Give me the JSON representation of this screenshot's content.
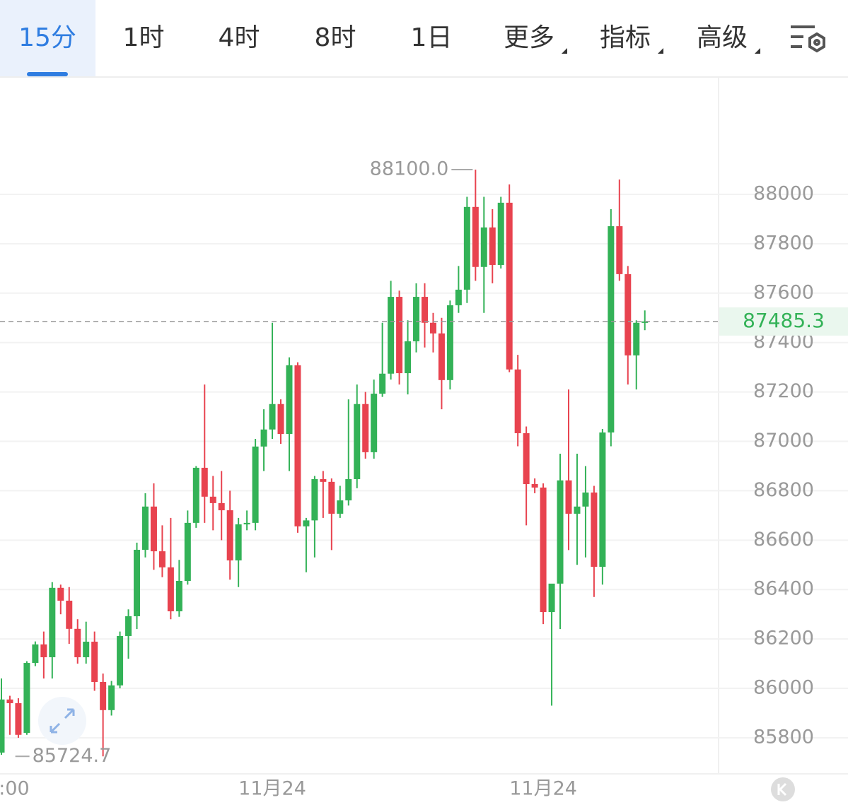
{
  "tabs": [
    "15分",
    "1时",
    "4时",
    "8时",
    "1日",
    "更多",
    "指标",
    "高级"
  ],
  "chart_data": {
    "type": "candlestick",
    "up_color": "#33b257",
    "down_color": "#e8434f",
    "ylim": [
      85654,
      88472
    ],
    "yticks": [
      85800,
      86000,
      86200,
      86400,
      86600,
      86800,
      87000,
      87200,
      87400,
      87600,
      87800,
      88000
    ],
    "grid": true,
    "high_label": {
      "value": 88100,
      "label": "88100.0"
    },
    "low_label": {
      "value": 85724.7,
      "label": "85724.7"
    },
    "last_price": 87485.3,
    "categories": [
      null,
      ":00",
      null,
      null,
      null,
      null,
      null,
      null,
      null,
      null,
      null,
      null,
      null,
      null,
      null,
      null,
      null,
      null,
      null,
      null,
      null,
      null,
      null,
      null,
      null,
      null,
      null,
      null,
      null,
      null,
      null,
      null,
      "11月24",
      null,
      null,
      null,
      null,
      null,
      null,
      null,
      null,
      null,
      null,
      null,
      null,
      null,
      null,
      null,
      null,
      null,
      null,
      null,
      null,
      null,
      null,
      null,
      null,
      null,
      null,
      null,
      null,
      null,
      null,
      null,
      "11月24",
      null,
      null,
      null,
      null,
      null,
      null,
      null,
      null,
      null,
      null,
      null,
      null
    ],
    "ohlc": [
      [
        85740,
        86040,
        85731,
        85955
      ],
      [
        85955,
        85970,
        85812,
        85940
      ],
      [
        85940,
        85960,
        85800,
        85812
      ],
      [
        85820,
        86110,
        85812,
        86103
      ],
      [
        86103,
        86190,
        86090,
        86178
      ],
      [
        86178,
        86230,
        86040,
        86126
      ],
      [
        86126,
        86430,
        86040,
        86407
      ],
      [
        86407,
        86420,
        86300,
        86355
      ],
      [
        86355,
        86410,
        86180,
        86241
      ],
      [
        86241,
        86280,
        86100,
        86126
      ],
      [
        86126,
        86270,
        86100,
        86189
      ],
      [
        86189,
        86230,
        85990,
        86026
      ],
      [
        86026,
        86060,
        85724.7,
        85912
      ],
      [
        85912,
        86030,
        85890,
        86012
      ],
      [
        86012,
        86230,
        86000,
        86212
      ],
      [
        86212,
        86320,
        86120,
        86292
      ],
      [
        86292,
        86590,
        86240,
        86561
      ],
      [
        86561,
        86790,
        86530,
        86736
      ],
      [
        86736,
        86830,
        86480,
        86555
      ],
      [
        86555,
        86660,
        86450,
        86490
      ],
      [
        86490,
        86690,
        86280,
        86312
      ],
      [
        86312,
        86520,
        86290,
        86435
      ],
      [
        86435,
        86720,
        86420,
        86670
      ],
      [
        86670,
        86900,
        86650,
        86893
      ],
      [
        86893,
        87230,
        86670,
        86776
      ],
      [
        86776,
        86860,
        86640,
        86750
      ],
      [
        86750,
        86880,
        86600,
        86721
      ],
      [
        86721,
        86800,
        86440,
        86518
      ],
      [
        86518,
        86690,
        86410,
        86664
      ],
      [
        86664,
        86720,
        86640,
        86670
      ],
      [
        86670,
        87010,
        86640,
        86979
      ],
      [
        86979,
        87130,
        86880,
        87048
      ],
      [
        87048,
        87480,
        87010,
        87151
      ],
      [
        87151,
        87170,
        86990,
        87030
      ],
      [
        87030,
        87340,
        86880,
        87308
      ],
      [
        87308,
        87320,
        86630,
        86656
      ],
      [
        86656,
        86690,
        86470,
        86680
      ],
      [
        86680,
        86860,
        86530,
        86847
      ],
      [
        86847,
        86880,
        86690,
        86836
      ],
      [
        86836,
        86850,
        86560,
        86707
      ],
      [
        86707,
        86820,
        86690,
        86761
      ],
      [
        86761,
        87170,
        86740,
        86847
      ],
      [
        86847,
        87230,
        86810,
        87151
      ],
      [
        87151,
        87200,
        86930,
        86956
      ],
      [
        86956,
        87250,
        86930,
        87193
      ],
      [
        87193,
        87480,
        87180,
        87274
      ],
      [
        87274,
        87650,
        87250,
        87585
      ],
      [
        87585,
        87610,
        87230,
        87276
      ],
      [
        87276,
        87490,
        87190,
        87405
      ],
      [
        87405,
        87640,
        87360,
        87585
      ],
      [
        87585,
        87640,
        87380,
        87480
      ],
      [
        87480,
        87520,
        87360,
        87437
      ],
      [
        87437,
        87500,
        87130,
        87248
      ],
      [
        87248,
        87570,
        87210,
        87551
      ],
      [
        87551,
        87710,
        87520,
        87614
      ],
      [
        87614,
        87990,
        87560,
        87949
      ],
      [
        87949,
        88100,
        87650,
        87706
      ],
      [
        87706,
        87990,
        87520,
        87866
      ],
      [
        87866,
        87940,
        87640,
        87714
      ],
      [
        87714,
        87990,
        87700,
        87966
      ],
      [
        87966,
        88040,
        87280,
        87291
      ],
      [
        87291,
        87350,
        86980,
        87033
      ],
      [
        87033,
        87060,
        86660,
        86827
      ],
      [
        86827,
        86850,
        86790,
        86813
      ],
      [
        86813,
        86830,
        86260,
        86309
      ],
      [
        86309,
        86420,
        85930,
        86424
      ],
      [
        86424,
        86950,
        86240,
        86842
      ],
      [
        86842,
        87210,
        86560,
        86707
      ],
      [
        86707,
        86950,
        86500,
        86736
      ],
      [
        86736,
        86900,
        86530,
        86793
      ],
      [
        86793,
        86820,
        86370,
        86492
      ],
      [
        86492,
        87050,
        86420,
        87036
      ],
      [
        87036,
        87940,
        86980,
        87871
      ],
      [
        87871,
        88060,
        87650,
        87677
      ],
      [
        87677,
        87710,
        87230,
        87348
      ],
      [
        87348,
        87490,
        87210,
        87480
      ],
      [
        87480,
        87530,
        87450,
        87485.3
      ]
    ]
  }
}
